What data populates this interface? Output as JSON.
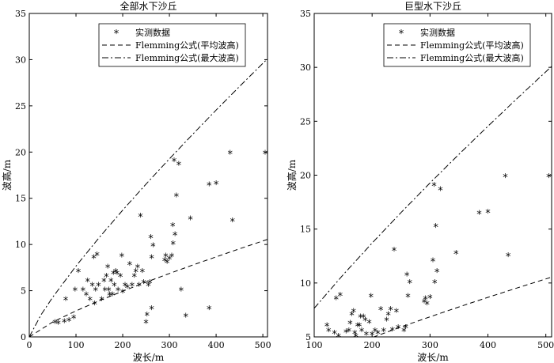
{
  "chart_data": [
    {
      "type": "scatter",
      "title": "全部水下沙丘",
      "xlabel": "波长/m",
      "ylabel": "波高/m",
      "xlim": [
        0,
        510
      ],
      "ylim": [
        0,
        35
      ],
      "xticks": [
        0,
        100,
        200,
        300,
        400,
        500
      ],
      "yticks": [
        0,
        5,
        10,
        15,
        20,
        25,
        30,
        35
      ],
      "legend_position": "top-center",
      "series": [
        {
          "name": "实测数据",
          "kind": "points",
          "marker": "asterisk",
          "points": [
            [
              55,
              1.5
            ],
            [
              62,
              1.4
            ],
            [
              75,
              1.6
            ],
            [
              78,
              4
            ],
            [
              85,
              1.7
            ],
            [
              95,
              2
            ],
            [
              98,
              5
            ],
            [
              105,
              7
            ],
            [
              115,
              5
            ],
            [
              122,
              4.5
            ],
            [
              125,
              6
            ],
            [
              130,
              4
            ],
            [
              135,
              5.5
            ],
            [
              138,
              8.5
            ],
            [
              140,
              3.5
            ],
            [
              142,
              5
            ],
            [
              145,
              8.8
            ],
            [
              148,
              5.5
            ],
            [
              155,
              4
            ],
            [
              160,
              6
            ],
            [
              162,
              5
            ],
            [
              165,
              6.5
            ],
            [
              168,
              7.5
            ],
            [
              170,
              5
            ],
            [
              172,
              4.5
            ],
            [
              175,
              6
            ],
            [
              178,
              4.5
            ],
            [
              180,
              6.8
            ],
            [
              182,
              5.5
            ],
            [
              185,
              7
            ],
            [
              188,
              6.8
            ],
            [
              190,
              5
            ],
            [
              195,
              6.5
            ],
            [
              198,
              8.7
            ],
            [
              200,
              4.8
            ],
            [
              205,
              5.5
            ],
            [
              210,
              5.3
            ],
            [
              215,
              7.8
            ],
            [
              220,
              5.5
            ],
            [
              225,
              6.5
            ],
            [
              228,
              7
            ],
            [
              232,
              7.5
            ],
            [
              235,
              5.5
            ],
            [
              238,
              13
            ],
            [
              242,
              7
            ],
            [
              245,
              5.8
            ],
            [
              250,
              1.5
            ],
            [
              252,
              2.3
            ],
            [
              255,
              5.5
            ],
            [
              258,
              5.8
            ],
            [
              260,
              10.7
            ],
            [
              262,
              8.5
            ],
            [
              262,
              3
            ],
            [
              265,
              9.8
            ],
            [
              290,
              8.2
            ],
            [
              292,
              8.7
            ],
            [
              295,
              8
            ],
            [
              300,
              8.4
            ],
            [
              305,
              8.7
            ],
            [
              307,
              12
            ],
            [
              308,
              10
            ],
            [
              310,
              19
            ],
            [
              312,
              11
            ],
            [
              315,
              15.2
            ],
            [
              320,
              18.6
            ],
            [
              325,
              5
            ],
            [
              335,
              2.2
            ],
            [
              345,
              12.7
            ],
            [
              385,
              16.4
            ],
            [
              385,
              3
            ],
            [
              400,
              16.5
            ],
            [
              430,
              19.8
            ],
            [
              435,
              12.5
            ],
            [
              505,
              19.8
            ]
          ]
        },
        {
          "name": "Flemming公式(平均波高)",
          "kind": "line",
          "dash": "dashed",
          "formula": "0.0677*L^0.8098",
          "x": [
            0,
            50,
            100,
            150,
            200,
            250,
            300,
            350,
            400,
            450,
            510
          ]
        },
        {
          "name": "Flemming公式(最大波高)",
          "kind": "line",
          "dash": "dashdot",
          "formula": "0.16*L^0.84",
          "x": [
            0,
            25,
            50,
            100,
            150,
            200,
            250,
            300,
            350,
            400,
            450,
            510
          ]
        }
      ]
    },
    {
      "type": "scatter",
      "title": "巨型水下沙丘",
      "xlabel": "波长/m",
      "ylabel": "波高/m",
      "xlim": [
        100,
        510
      ],
      "ylim": [
        5,
        35
      ],
      "xticks": [
        100,
        200,
        300,
        400,
        500
      ],
      "yticks": [
        5,
        10,
        15,
        20,
        25,
        30,
        35
      ],
      "legend_position": "top-center",
      "series": [
        {
          "name": "实测数据",
          "kind": "points",
          "marker": "asterisk",
          "points": [
            [
              122,
              6
            ],
            [
              125,
              5.5
            ],
            [
              135,
              5.3
            ],
            [
              138,
              8.5
            ],
            [
              142,
              5
            ],
            [
              145,
              8.8
            ],
            [
              155,
              5.4
            ],
            [
              160,
              5.5
            ],
            [
              162,
              6.2
            ],
            [
              165,
              7
            ],
            [
              168,
              7.3
            ],
            [
              170,
              5.3
            ],
            [
              172,
              5
            ],
            [
              175,
              6
            ],
            [
              178,
              6
            ],
            [
              180,
              6.8
            ],
            [
              182,
              5.5
            ],
            [
              185,
              6.8
            ],
            [
              188,
              6.5
            ],
            [
              190,
              5.2
            ],
            [
              195,
              6.3
            ],
            [
              198,
              8.7
            ],
            [
              200,
              5.2
            ],
            [
              205,
              5.5
            ],
            [
              210,
              5.3
            ],
            [
              215,
              7.5
            ],
            [
              220,
              5.5
            ],
            [
              225,
              6.5
            ],
            [
              228,
              7
            ],
            [
              232,
              7.5
            ],
            [
              235,
              5.6
            ],
            [
              238,
              13
            ],
            [
              242,
              7.3
            ],
            [
              245,
              5.8
            ],
            [
              255,
              5.5
            ],
            [
              258,
              5.8
            ],
            [
              260,
              10.7
            ],
            [
              262,
              8.7
            ],
            [
              265,
              10
            ],
            [
              290,
              8.2
            ],
            [
              292,
              8.5
            ],
            [
              295,
              8
            ],
            [
              300,
              8.6
            ],
            [
              305,
              12
            ],
            [
              307,
              19
            ],
            [
              308,
              10
            ],
            [
              310,
              15.2
            ],
            [
              312,
              11
            ],
            [
              318,
              18.6
            ],
            [
              345,
              12.7
            ],
            [
              385,
              16.4
            ],
            [
              400,
              16.5
            ],
            [
              430,
              19.8
            ],
            [
              435,
              12.5
            ],
            [
              505,
              19.8
            ]
          ]
        },
        {
          "name": "Flemming公式(平均波高)",
          "kind": "line",
          "dash": "dashed",
          "formula": "0.0677*L^0.8098",
          "x": [
            100,
            150,
            200,
            250,
            300,
            350,
            400,
            450,
            510
          ]
        },
        {
          "name": "Flemming公式(最大波高)",
          "kind": "line",
          "dash": "dashdot",
          "formula": "0.16*L^0.84",
          "x": [
            100,
            150,
            200,
            250,
            300,
            350,
            400,
            450,
            510
          ]
        }
      ]
    }
  ]
}
